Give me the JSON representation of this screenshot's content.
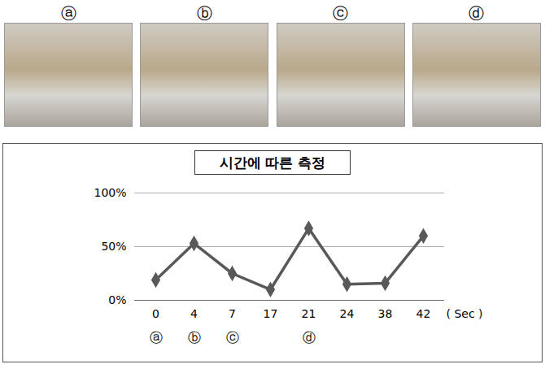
{
  "panels": [
    "ⓐ",
    "ⓑ",
    "ⓒ",
    "ⓓ"
  ],
  "chart_data": {
    "type": "line",
    "title": "시간에 따른 측정",
    "x_label": "( Sec )",
    "categories": [
      "0",
      "4",
      "7",
      "17",
      "21",
      "24",
      "38",
      "42"
    ],
    "values": [
      19,
      53,
      25,
      10,
      67,
      15,
      16,
      60
    ],
    "point_labels": [
      "ⓐ",
      "ⓑ",
      "ⓒ",
      null,
      "ⓓ",
      null,
      null,
      null
    ],
    "color": "#595959",
    "marker": "diamond",
    "ylim": [
      0,
      100
    ],
    "yticks": [
      {
        "value": 0,
        "label": "0%"
      },
      {
        "value": 50,
        "label": "50%"
      },
      {
        "value": 100,
        "label": "100%"
      }
    ],
    "grid": true
  }
}
